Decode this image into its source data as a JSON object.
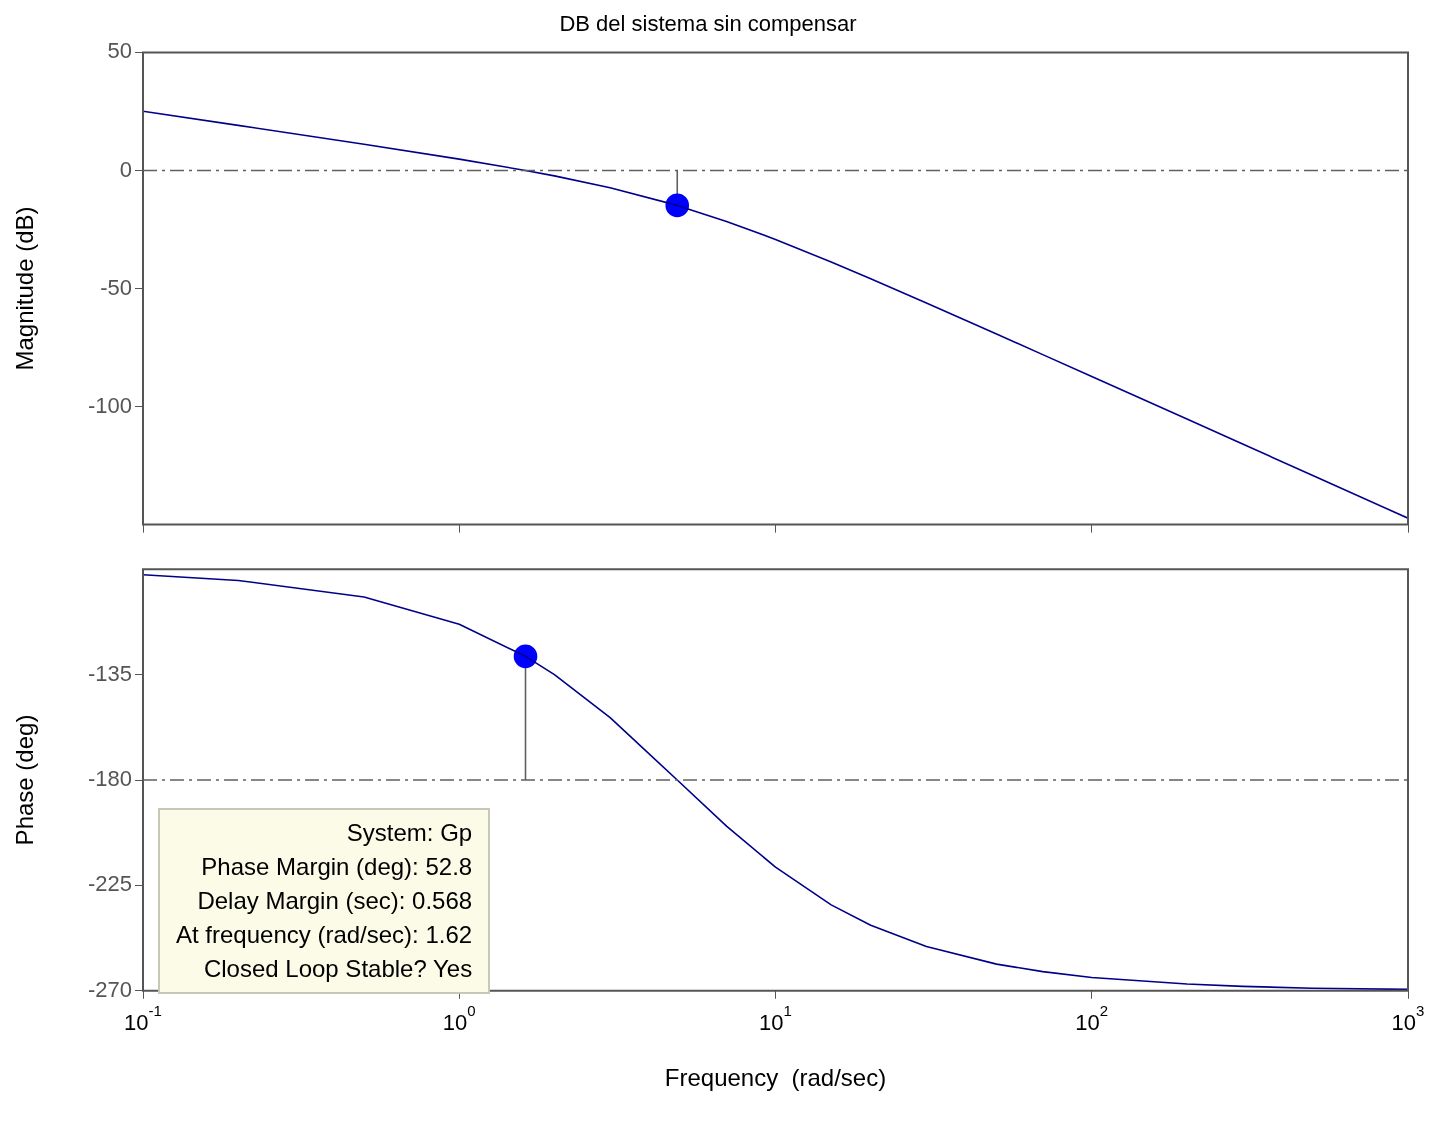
{
  "chart_data": [
    {
      "type": "line",
      "title": "DB del sistema sin compensar",
      "ylabel": "Magnitude (dB)",
      "log": "x",
      "xlim": [
        0.1,
        1000
      ],
      "xticks": [
        {
          "value": 0.1,
          "label": null
        },
        {
          "value": 1,
          "label": null
        },
        {
          "value": 10,
          "label": null
        },
        {
          "value": 100,
          "label": null
        },
        {
          "value": 1000,
          "label": null
        }
      ],
      "ylim": [
        -150,
        50
      ],
      "yticks": [
        50,
        0,
        -50,
        -100
      ],
      "tick_labels": "y",
      "x": [
        0.1,
        0.2,
        0.5,
        1,
        1.62,
        2,
        3,
        4.89,
        7,
        10,
        15,
        20,
        30,
        50,
        70,
        100,
        200,
        300,
        500,
        1000
      ],
      "ref_lines": [
        {
          "axis": "y",
          "value": 0,
          "color": "#606060",
          "line_style": "dashed"
        }
      ],
      "series": [
        {
          "color": "#00008b",
          "values": [
            25.1,
            19.1,
            11.1,
            4.8,
            0,
            -2.3,
            -7.3,
            -14.8,
            -21.6,
            -29.2,
            -38.8,
            -45.9,
            -56.1,
            -69.3,
            -78,
            -87.3,
            -105.3,
            -115.9,
            -129.2,
            -147.3
          ]
        },
        {
          "type": "scatter",
          "x": [
            4.89
          ],
          "color": "#0000ff",
          "marker": "circle",
          "values": [
            -14.8
          ],
          "errors": [
            [
              -14.8,
              0
            ]
          ]
        }
      ]
    },
    {
      "type": "line",
      "xlabel": "Frequency  (rad/sec)",
      "ylabel": "Phase (deg)",
      "log": "x",
      "xlim": [
        0.1,
        1000
      ],
      "xticks": [
        {
          "value": 0.1,
          "label": "10$^{-1}$"
        },
        {
          "value": 1,
          "label": "10$^{0}$"
        },
        {
          "value": 10,
          "label": "10$^{1}$"
        },
        {
          "value": 100,
          "label": "10$^{2}$"
        },
        {
          "value": 1000,
          "label": "10$^{3}$"
        }
      ],
      "ylim": [
        -270,
        -90
      ],
      "yticks": [
        -135,
        -180,
        -225,
        -270
      ],
      "x": [
        0.1,
        0.2,
        0.5,
        1,
        1.62,
        2,
        3,
        4.89,
        7,
        10,
        15,
        20,
        30,
        50,
        70,
        100,
        200,
        300,
        500,
        1000
      ],
      "ref_lines": [
        {
          "axis": "y",
          "value": -180,
          "color": "#606060",
          "line_style": "dashed"
        }
      ],
      "annotations": [
        "System: Gp",
        "Phase Margin (deg): 52.8",
        "Delay Margin (sec): 0.568",
        "At frequency (rad/sec): 1.62",
        "Closed Loop Stable? Yes"
      ],
      "series": [
        {
          "color": "#00008b",
          "values": [
            -92.4,
            -94.8,
            -101.9,
            -113.5,
            -127.2,
            -135,
            -153.4,
            -180,
            -199.7,
            -217.2,
            -233.3,
            -242,
            -251.1,
            -258.6,
            -261.8,
            -264.3,
            -267.1,
            -268.1,
            -268.9,
            -269.4
          ]
        },
        {
          "type": "scatter",
          "x": [
            1.62
          ],
          "color": "#0000ff",
          "marker": "circle",
          "values": [
            -127.2
          ],
          "errors": [
            [
              -180,
              -127.2
            ]
          ]
        }
      ]
    }
  ]
}
